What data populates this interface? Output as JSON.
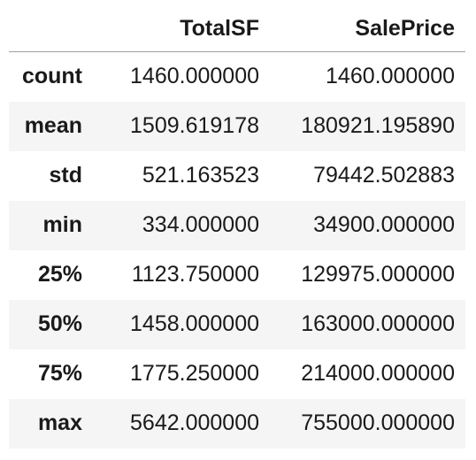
{
  "table": {
    "columns": [
      "TotalSF",
      "SalePrice"
    ],
    "rows": [
      {
        "label": "count",
        "values": [
          "1460.000000",
          "1460.000000"
        ]
      },
      {
        "label": "mean",
        "values": [
          "1509.619178",
          "180921.195890"
        ]
      },
      {
        "label": "std",
        "values": [
          "521.163523",
          "79442.502883"
        ]
      },
      {
        "label": "min",
        "values": [
          "334.000000",
          "34900.000000"
        ]
      },
      {
        "label": "25%",
        "values": [
          "1123.750000",
          "129975.000000"
        ]
      },
      {
        "label": "50%",
        "values": [
          "1458.000000",
          "163000.000000"
        ]
      },
      {
        "label": "75%",
        "values": [
          "1775.250000",
          "214000.000000"
        ]
      },
      {
        "label": "max",
        "values": [
          "5642.000000",
          "755000.000000"
        ]
      }
    ]
  }
}
